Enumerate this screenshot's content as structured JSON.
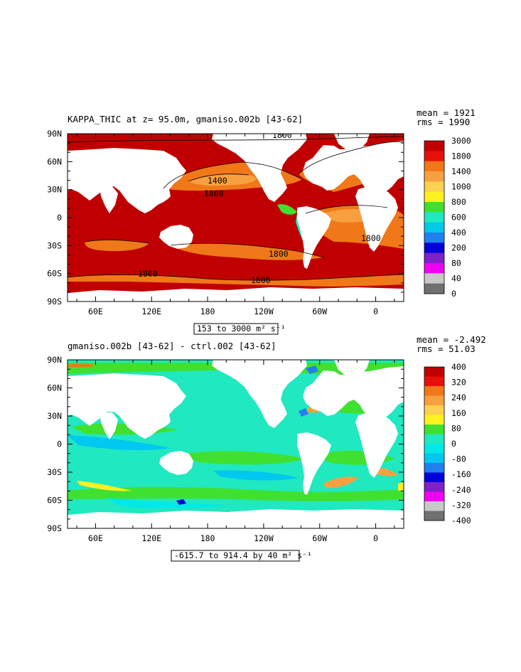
{
  "chart_data": [
    {
      "type": "heatmap",
      "title": "KAPPA_THIC at z=  95.0m, gmaniso.002b [43-62]",
      "stats": {
        "mean": "mean = 1921",
        "rms": "rms = 1990"
      },
      "range_label": "153 to 3000 m² s⁻¹",
      "x_ticks": [
        "60E",
        "120E",
        "180",
        "120W",
        "60W",
        "0"
      ],
      "y_ticks": [
        "90N",
        "60N",
        "30N",
        "0",
        "30S",
        "60S",
        "90S"
      ],
      "colorbar": {
        "labels": [
          "3000",
          "1800",
          "1400",
          "1000",
          "800",
          "600",
          "400",
          "200",
          "80",
          "40",
          "0"
        ],
        "colors": [
          "#c00000",
          "#e8100a",
          "#f07818",
          "#f8a040",
          "#fcd050",
          "#fff020",
          "#40e030",
          "#20e8c0",
          "#00c8e8",
          "#2080f0",
          "#0000d8",
          "#8020c8",
          "#f000f0",
          "#c8c8c8",
          "#707070"
        ]
      },
      "contour_labels": [
        "1800",
        "1400",
        "1800",
        "1800",
        "1800",
        "1800",
        "1800"
      ]
    },
    {
      "type": "heatmap",
      "title": "gmaniso.002b [43-62] - ctrl.002 [43-62]",
      "stats": {
        "mean": "mean = -2.492",
        "rms": "rms = 51.03"
      },
      "range_label": "-615.7 to 914.4 by 40 m² s⁻¹",
      "x_ticks": [
        "60E",
        "120E",
        "180",
        "120W",
        "60W",
        "0"
      ],
      "y_ticks": [
        "90N",
        "60N",
        "30N",
        "0",
        "30S",
        "60S",
        "90S"
      ],
      "colorbar": {
        "labels": [
          "400",
          "320",
          "240",
          "160",
          "80",
          "0",
          "-80",
          "-160",
          "-240",
          "-320",
          "-400"
        ],
        "colors": [
          "#c00000",
          "#e8100a",
          "#f07818",
          "#f8a040",
          "#fcd050",
          "#fff020",
          "#40e030",
          "#20e8c0",
          "#00e8e8",
          "#00c8f0",
          "#2080f0",
          "#0000d8",
          "#8020c8",
          "#f000f0",
          "#c8c8c8",
          "#707070"
        ]
      }
    }
  ]
}
